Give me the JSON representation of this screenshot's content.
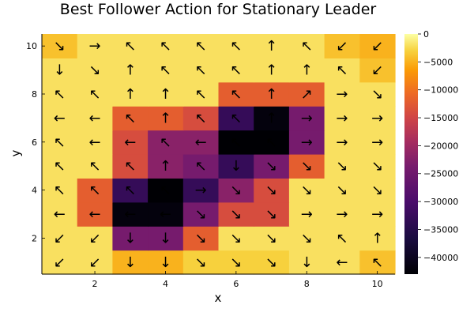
{
  "chart_data": {
    "type": "heatmap",
    "title": "Best Follower Action for Stationary Leader",
    "xlabel": "x",
    "ylabel": "y",
    "x_ticks": [
      "2",
      "4",
      "6",
      "8",
      "10"
    ],
    "y_ticks": [
      "2",
      "4",
      "6",
      "8",
      "10"
    ],
    "colorbar_ticks": [
      "0",
      "−5000",
      "−10000",
      "−15000",
      "−20000",
      "−25000",
      "−30000",
      "−35000",
      "−40000"
    ],
    "colorbar_range": [
      -43000,
      0
    ],
    "colorscale": "inferno",
    "values": [
      [
        -2000,
        -2000,
        -5000,
        -5000,
        -3000,
        -3000,
        -3000,
        -2000,
        -2000,
        -4000
      ],
      [
        -2000,
        -2000,
        -24000,
        -24000,
        -12000,
        -2000,
        -2000,
        -2000,
        -2000,
        -2000
      ],
      [
        -2000,
        -12000,
        -42000,
        -42000,
        -24000,
        -14000,
        -14000,
        -2000,
        -2000,
        -2000
      ],
      [
        -2000,
        -12000,
        -33000,
        -43000,
        -33000,
        -22000,
        -14000,
        -2000,
        -2000,
        -2000
      ],
      [
        -2000,
        -2000,
        -14000,
        -22000,
        -24000,
        -33000,
        -24000,
        -12000,
        -2000,
        -2000
      ],
      [
        -2000,
        -2000,
        -14000,
        -22000,
        -22000,
        -43000,
        -43000,
        -24000,
        -2000,
        -2000
      ],
      [
        -2000,
        -2000,
        -12000,
        -12000,
        -14000,
        -33000,
        -42000,
        -24000,
        -2000,
        -2000
      ],
      [
        -2000,
        -2000,
        -2000,
        -2000,
        -2000,
        -12000,
        -12000,
        -12000,
        -2000,
        -2000
      ],
      [
        -2000,
        -2000,
        -2000,
        -2000,
        -2000,
        -2000,
        -2000,
        -2000,
        -2000,
        -4000
      ],
      [
        -4000,
        -2000,
        -2000,
        -2000,
        -2000,
        -2000,
        -2000,
        -2000,
        -4000,
        -5000
      ]
    ],
    "arrows": [
      [
        "↙",
        "↙",
        "↓",
        "↓",
        "↘",
        "↘",
        "↘",
        "↓",
        "←",
        "↖"
      ],
      [
        "↙",
        "↙",
        "↓",
        "↓",
        "↘",
        "↘",
        "↘",
        "↘",
        "↖",
        "↑"
      ],
      [
        "←",
        "←",
        "←",
        "←",
        "↘",
        "↘",
        "↘",
        "→",
        "→",
        "→"
      ],
      [
        "↖",
        "↖",
        "↖",
        "↖",
        "→",
        "↘",
        "↘",
        "↘",
        "↘",
        "↘"
      ],
      [
        "↖",
        "↖",
        "↖",
        "↑",
        "↖",
        "↓",
        "↘",
        "↘",
        "↘",
        "↘"
      ],
      [
        "↖",
        "←",
        "←",
        "↖",
        "←",
        "↖",
        "↖",
        "→",
        "→",
        "→"
      ],
      [
        "←",
        "←",
        "↖",
        "↑",
        "↖",
        "↖",
        "↑",
        "→",
        "→",
        "→"
      ],
      [
        "↖",
        "↖",
        "↑",
        "↑",
        "↖",
        "↖",
        "↑",
        "↗",
        "→",
        "↘"
      ],
      [
        "↓",
        "↘",
        "↑",
        "↖",
        "↖",
        "↖",
        "↑",
        "↑",
        "↖",
        "↙"
      ],
      [
        "↘",
        "→",
        "↖",
        "↖",
        "↖",
        "↖",
        "↑",
        "↖",
        "↙",
        "↙"
      ]
    ],
    "grid": false
  }
}
